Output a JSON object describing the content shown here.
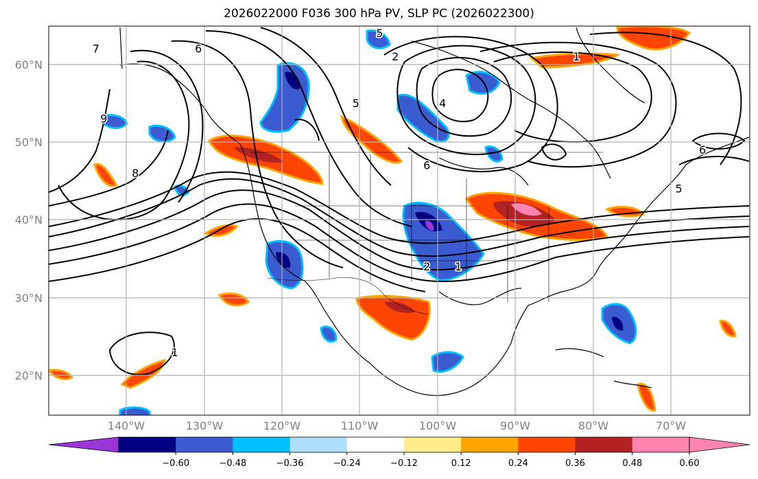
{
  "title": "2026022000 F036 300 hPa PV, SLP PC (2026022300)",
  "map": {
    "lat_labels": [
      "60°N",
      "50°N",
      "40°N",
      "30°N",
      "20°N"
    ],
    "lon_labels": [
      "140°W",
      "130°W",
      "120°W",
      "110°W",
      "100°W",
      "90°W",
      "80°W",
      "70°W"
    ],
    "lon_range": [
      -150,
      -61
    ],
    "lat_range": [
      15,
      65
    ],
    "gridlines": true
  },
  "colorbar": {
    "labels": [
      "−0.60",
      "−0.48",
      "−0.36",
      "−0.24",
      "−0.12",
      "0.12",
      "0.24",
      "0.36",
      "0.48",
      "0.60"
    ],
    "colors": [
      "#9a35d8",
      "#000080",
      "#3b5bd0",
      "#00bfff",
      "#aee0fb",
      "#ffffff",
      "#ffec8b",
      "#ffa500",
      "#ff4500",
      "#b22222",
      "#ff85b0",
      "#ff85b0"
    ],
    "extend": "both"
  },
  "contour_labels": [
    {
      "text": "5",
      "lon": -108,
      "lat": 64
    },
    {
      "text": "2",
      "lon": -106,
      "lat": 61
    },
    {
      "text": "1",
      "lon": -83,
      "lat": 61
    },
    {
      "text": "4",
      "lon": -100,
      "lat": 55
    },
    {
      "text": "5",
      "lon": -111,
      "lat": 55
    },
    {
      "text": "6",
      "lon": -131,
      "lat": 62
    },
    {
      "text": "7",
      "lon": -144,
      "lat": 62
    },
    {
      "text": "9",
      "lon": -143,
      "lat": 53
    },
    {
      "text": "8",
      "lon": -139,
      "lat": 46
    },
    {
      "text": "6",
      "lon": -102,
      "lat": 47
    },
    {
      "text": "2",
      "lon": -102,
      "lat": 34
    },
    {
      "text": "1",
      "lon": -98,
      "lat": 34
    },
    {
      "text": "5",
      "lon": -70,
      "lat": 44
    },
    {
      "text": "6",
      "lon": -67,
      "lat": 49
    },
    {
      "text": "1",
      "lon": -134,
      "lat": 23
    }
  ]
}
